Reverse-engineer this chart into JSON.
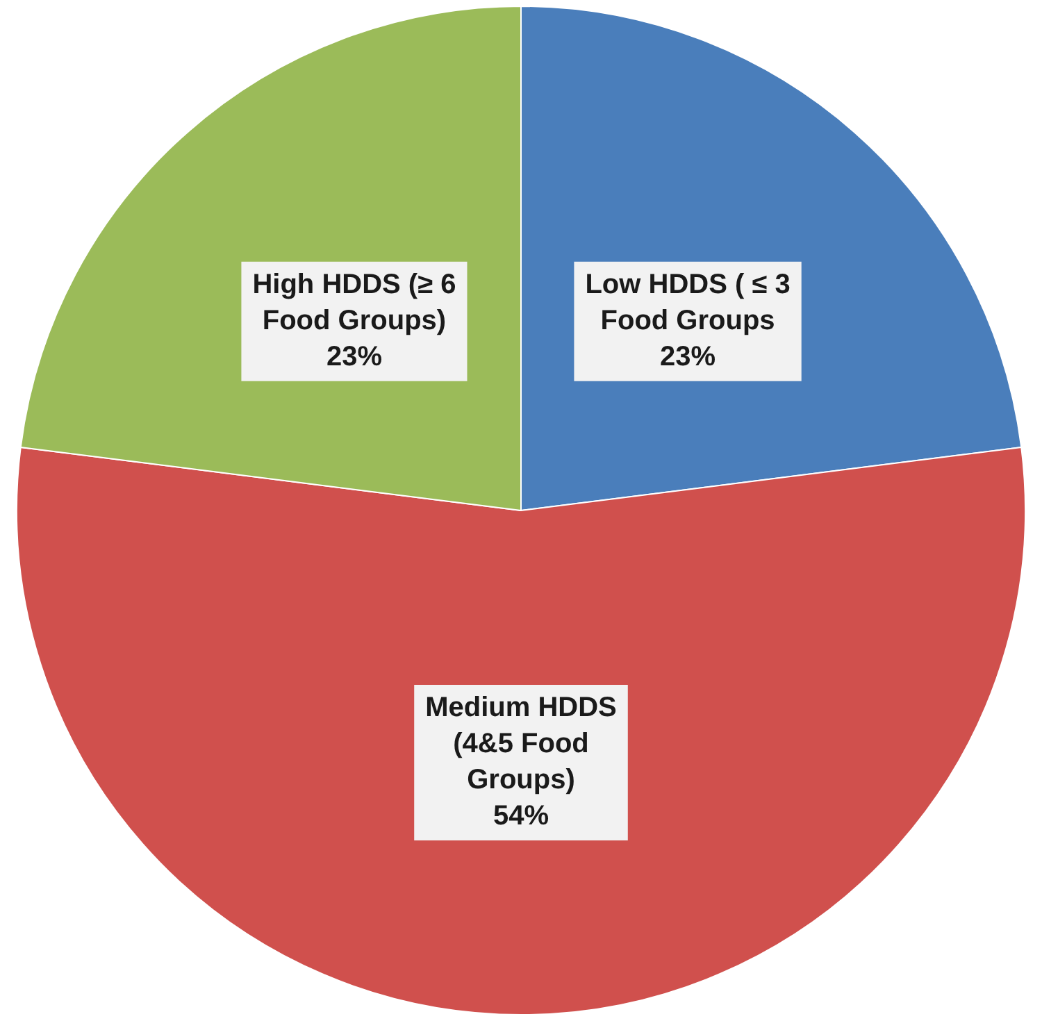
{
  "chart_data": {
    "type": "pie",
    "categories": [
      "Low HDDS ( ≤ 3 Food Groups",
      "Medium HDDS (4&5 Food Groups)",
      "High HDDS (≥ 6 Food Groups)"
    ],
    "values": [
      23,
      54,
      23
    ],
    "colors": [
      "#4a7ebb",
      "#d0504d",
      "#9bbb59"
    ],
    "value_labels": [
      "23%",
      "54%",
      "23%"
    ],
    "legend": false
  }
}
